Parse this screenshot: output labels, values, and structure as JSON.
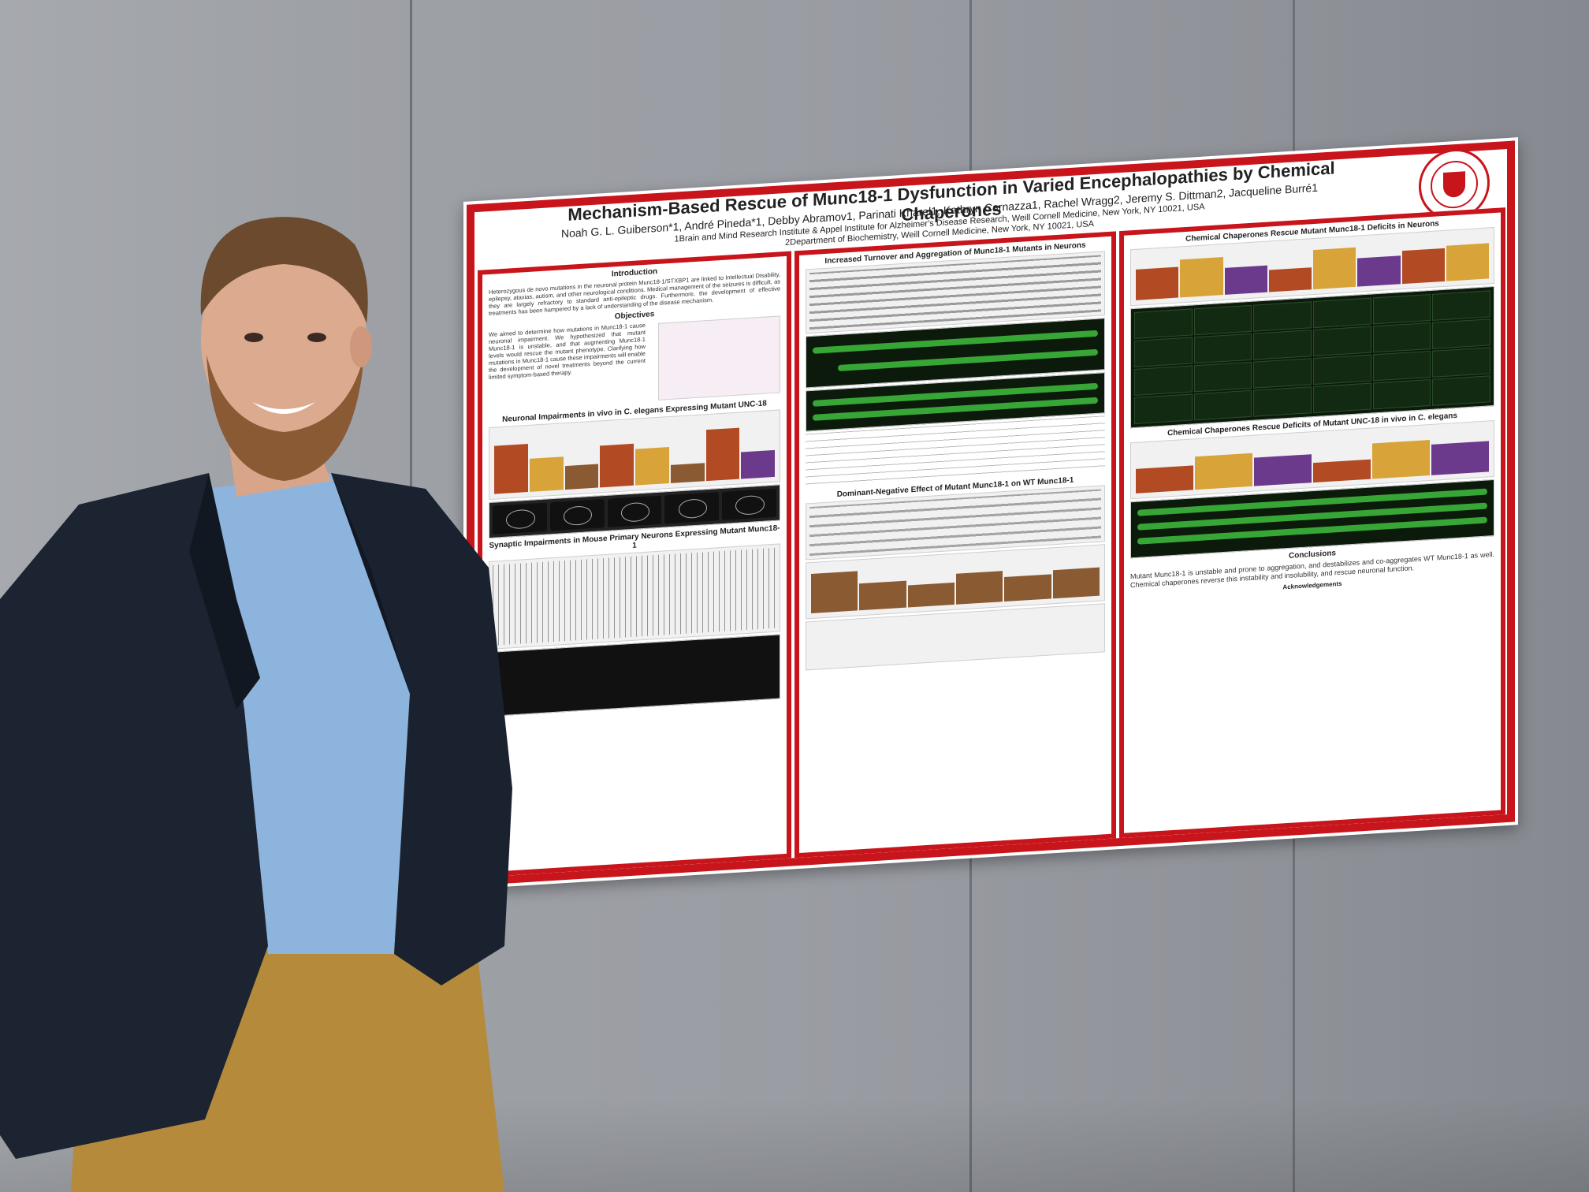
{
  "poster": {
    "title": "Mechanism-Based Rescue of Munc18-1 Dysfunction in Varied Encephalopathies by Chemical Chaperones",
    "authors": "Noah G. L. Guiberson*1, André Pineda*1, Debby Abramov1, Parinati Kharel1, Kathryn Carnazza1, Rachel Wragg2, Jeremy S. Dittman2, Jacqueline Burré1",
    "affiliation_1": "1Brain and Mind Research Institute & Appel Institute for Alzheimer's Disease Research, Weill Cornell Medicine, New York, NY 10021, USA",
    "affiliation_2": "2Department of Biochemistry, Weill Cornell Medicine, New York, NY 10021, USA",
    "introduction_title": "Introduction",
    "introduction_text": "Heterozygous de novo mutations in the neuronal protein Munc18-1/STXBP1 are linked to Intellectual Disability, epilepsy, ataxias, autism, and other neurological conditions. Medical management of the seizures is difficult, as they are largely refractory to standard anti-epileptic drugs. Furthermore, the development of effective treatments has been hampered by a lack of understanding of the disease mechanism.",
    "objectives_title": "Objectives",
    "objectives_text": "We aimed to determine how mutations in Munc18-1 cause neuronal impairment. We hypothesized that mutant Munc18-1 is unstable, and that augmenting Munc18-1 levels would rescue the mutant phenotype. Clarifying how mutations in Munc18-1 cause these impairments will enable the development of novel treatments beyond the current limited symptom-based therapy.",
    "section_neuronal": "Neuronal Impairments in vivo in C. elegans Expressing Mutant UNC-18",
    "section_synaptic": "Synaptic Impairments in Mouse Primary Neurons Expressing Mutant Munc18-1",
    "section_turnover": "Increased Turnover and Aggregation of Munc18-1 Mutants in Neurons",
    "section_dominant": "Dominant-Negative Effect of Mutant Munc18-1 on WT Munc18-1",
    "section_chaperones_neurons": "Chemical Chaperones Rescue Mutant Munc18-1 Deficits in Neurons",
    "section_chaperones_elegans": "Chemical Chaperones Rescue Deficits of Mutant UNC-18 in vivo in C. elegans",
    "conclusions_title": "Conclusions",
    "conclusions_text": "Mutant Munc18-1 is unstable and prone to aggregation, and destabilizes and co-aggregates WT Munc18-1 as well. Chemical chaperones reverse this instability and insolubility, and rescue neuronal function.",
    "acknowledgements_title": "Acknowledgements"
  },
  "colors": {
    "poster_red": "#c8141b",
    "wall": "#9a9da3",
    "jacket": "#1c2431",
    "shirt": "#8db4dc",
    "pants": "#b58a3a",
    "skin": "#d9a58a",
    "hair": "#6b4a2e",
    "beard": "#8a5a34"
  }
}
